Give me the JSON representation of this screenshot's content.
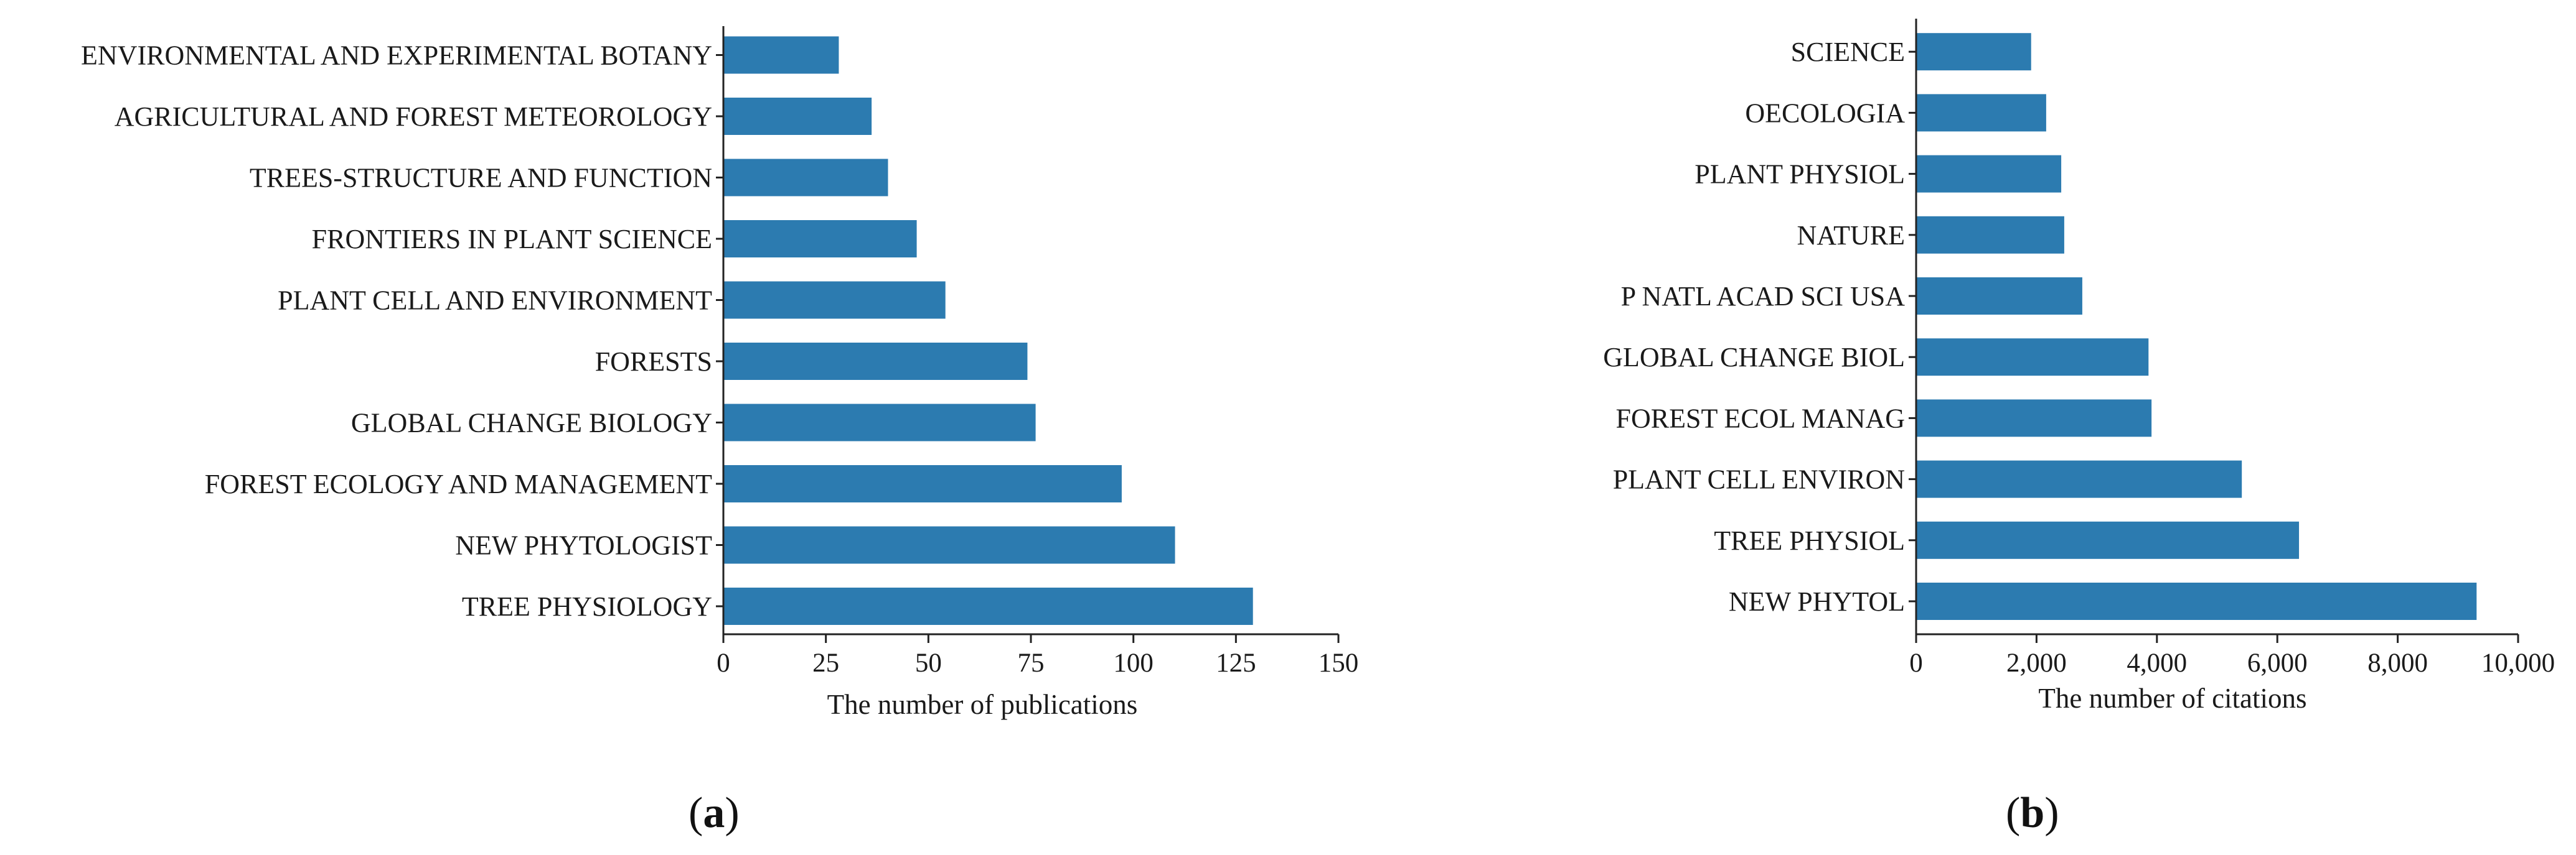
{
  "chart_data": [
    {
      "type": "bar",
      "orientation": "horizontal",
      "panel_label": "a",
      "categories": [
        "TREE PHYSIOLOGY",
        "NEW PHYTOLOGIST",
        "FOREST ECOLOGY AND MANAGEMENT",
        "GLOBAL CHANGE BIOLOGY",
        "FORESTS",
        "PLANT CELL AND ENVIRONMENT",
        "FRONTIERS IN PLANT SCIENCE",
        "TREES-STRUCTURE AND FUNCTION",
        "AGRICULTURAL AND FOREST METEOROLOGY",
        "ENVIRONMENTAL AND EXPERIMENTAL BOTANY"
      ],
      "values": [
        129,
        110,
        97,
        76,
        74,
        54,
        47,
        40,
        36,
        28
      ],
      "xlabel": "The number of publications",
      "ylabel": "",
      "xlim": [
        0,
        150
      ],
      "xticks": [
        0,
        25,
        50,
        75,
        100,
        125,
        150
      ],
      "xtick_labels": [
        "0",
        "25",
        "50",
        "75",
        "100",
        "125",
        "150"
      ],
      "color": "#2c7bb0",
      "grid": false
    },
    {
      "type": "bar",
      "orientation": "horizontal",
      "panel_label": "b",
      "categories": [
        "NEW PHYTOL",
        "TREE PHYSIOL",
        "PLANT CELL ENVIRON",
        "FOREST ECOL MANAG",
        "GLOBAL CHANGE BIOL",
        "P NATL ACAD SCI USA",
        "NATURE",
        "PLANT PHYSIOL",
        "OECOLOGIA",
        "SCIENCE"
      ],
      "values": [
        9300,
        6350,
        5400,
        3900,
        3850,
        2750,
        2450,
        2400,
        2150,
        1900
      ],
      "xlabel": "The number of citations",
      "ylabel": "",
      "xlim": [
        0,
        10000
      ],
      "xticks": [
        0,
        2000,
        4000,
        6000,
        8000,
        10000
      ],
      "xtick_labels": [
        "0",
        "2,000",
        "4,000",
        "6,000",
        "8,000",
        "10,000"
      ],
      "color": "#2c7bb0",
      "grid": false
    }
  ]
}
